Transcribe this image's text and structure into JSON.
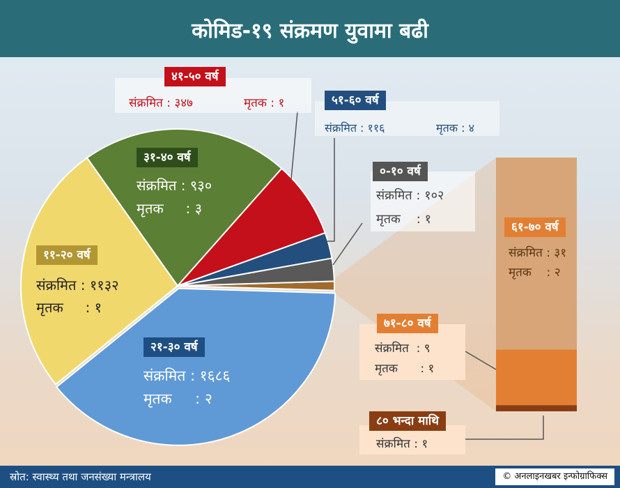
{
  "header": {
    "title": "कोमिड-१९ संक्रमण युवामा बढी"
  },
  "footer": {
    "source": "स्रोत: स्वास्थ्य तथा जनसंख्या मन्त्रालय",
    "credit": "अनलाइनखबर इन्फोग्राफिक्स",
    "credit_symbol": "©"
  },
  "labels": {
    "infected": "संक्रमित",
    "deaths": "मृतक",
    "sep": ":"
  },
  "chart_data": {
    "type": "pie",
    "title": "कोमिड-१९ संक्रमण युवामा बढी",
    "unit": "persons",
    "slices": [
      {
        "label": "०-१० वर्ष",
        "infected": 102,
        "infected_text": "१०२",
        "deaths": 1,
        "deaths_text": "१",
        "color": "#595959"
      },
      {
        "label": "११-२० वर्ष",
        "infected": 1132,
        "infected_text": "११३२",
        "deaths": 1,
        "deaths_text": "१",
        "color": "#f1d86d"
      },
      {
        "label": "२१-३० वर्ष",
        "infected": 1686,
        "infected_text": "१६८६",
        "deaths": 2,
        "deaths_text": "२",
        "color": "#5f9ad6"
      },
      {
        "label": "३१-४० वर्ष",
        "infected": 930,
        "infected_text": "९३०",
        "deaths": 3,
        "deaths_text": "३",
        "color": "#5b7f34"
      },
      {
        "label": "४१-५० वर्ष",
        "infected": 347,
        "infected_text": "३४७",
        "deaths": 1,
        "deaths_text": "१",
        "color": "#c4101a"
      },
      {
        "label": "५१-६० वर्ष",
        "infected": 116,
        "infected_text": "११६",
        "deaths": 4,
        "deaths_text": "४",
        "color": "#224f7e"
      },
      {
        "label": "६१-७० वर्ष",
        "infected": 31,
        "infected_text": "३१",
        "deaths": 2,
        "deaths_text": "२",
        "color": "#a06b2c"
      },
      {
        "label": "७१-८० वर्ष",
        "infected": 9,
        "infected_text": "९",
        "deaths": 1,
        "deaths_text": "१",
        "color": "#e37f33"
      },
      {
        "label": "८० भन्दा माथि",
        "infected": 1,
        "infected_text": "१",
        "deaths": null,
        "deaths_text": null,
        "color": "#8a3d12"
      }
    ],
    "breakout": {
      "of": "६१-८० वर्ष र ८० भन्दा माथि",
      "colors": {
        "61-70": "#d7a577",
        "71-80": "#e37f33",
        "80+": "#8a3d12"
      }
    }
  },
  "colors": {
    "header_bg": "#2a6d79",
    "footer_bg": "#1e4f82",
    "accent_red": "#c4101a",
    "accent_green": "#5b7f34"
  }
}
